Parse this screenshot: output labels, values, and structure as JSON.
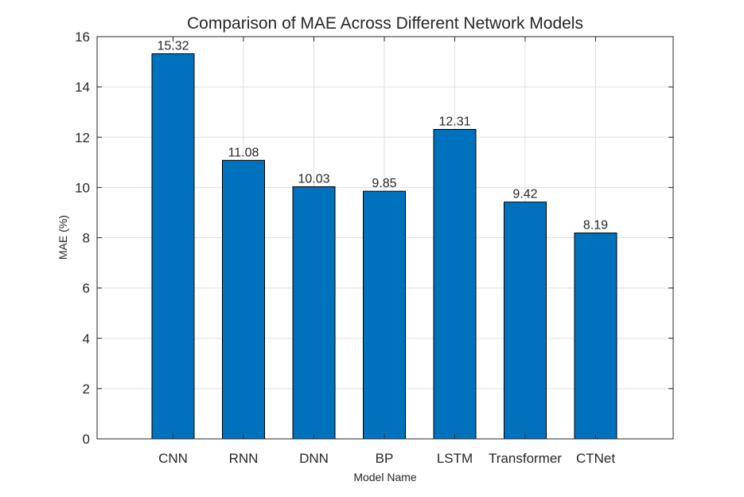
{
  "chart_data": {
    "type": "bar",
    "title": "Comparison of MAE Across Different Network Models",
    "xlabel": "Model Name",
    "ylabel": "MAE (%)",
    "categories": [
      "CNN",
      "RNN",
      "DNN",
      "BP",
      "LSTM",
      "Transformer",
      "CTNet"
    ],
    "values": [
      15.32,
      11.08,
      10.03,
      9.85,
      12.31,
      9.42,
      8.19
    ],
    "data_labels": [
      "15.32",
      "11.08",
      "10.03",
      "9.85",
      "12.31",
      "9.42",
      "8.19"
    ],
    "ylim": [
      0,
      16
    ],
    "yticks": [
      "0",
      "2",
      "4",
      "6",
      "8",
      "10",
      "12",
      "14",
      "16"
    ],
    "grid": true,
    "legend": "none",
    "bar_color": "#0072BD",
    "bar_edge_color": "#000000",
    "grid_color": "#DFDFDF",
    "text_color": "#262626"
  }
}
